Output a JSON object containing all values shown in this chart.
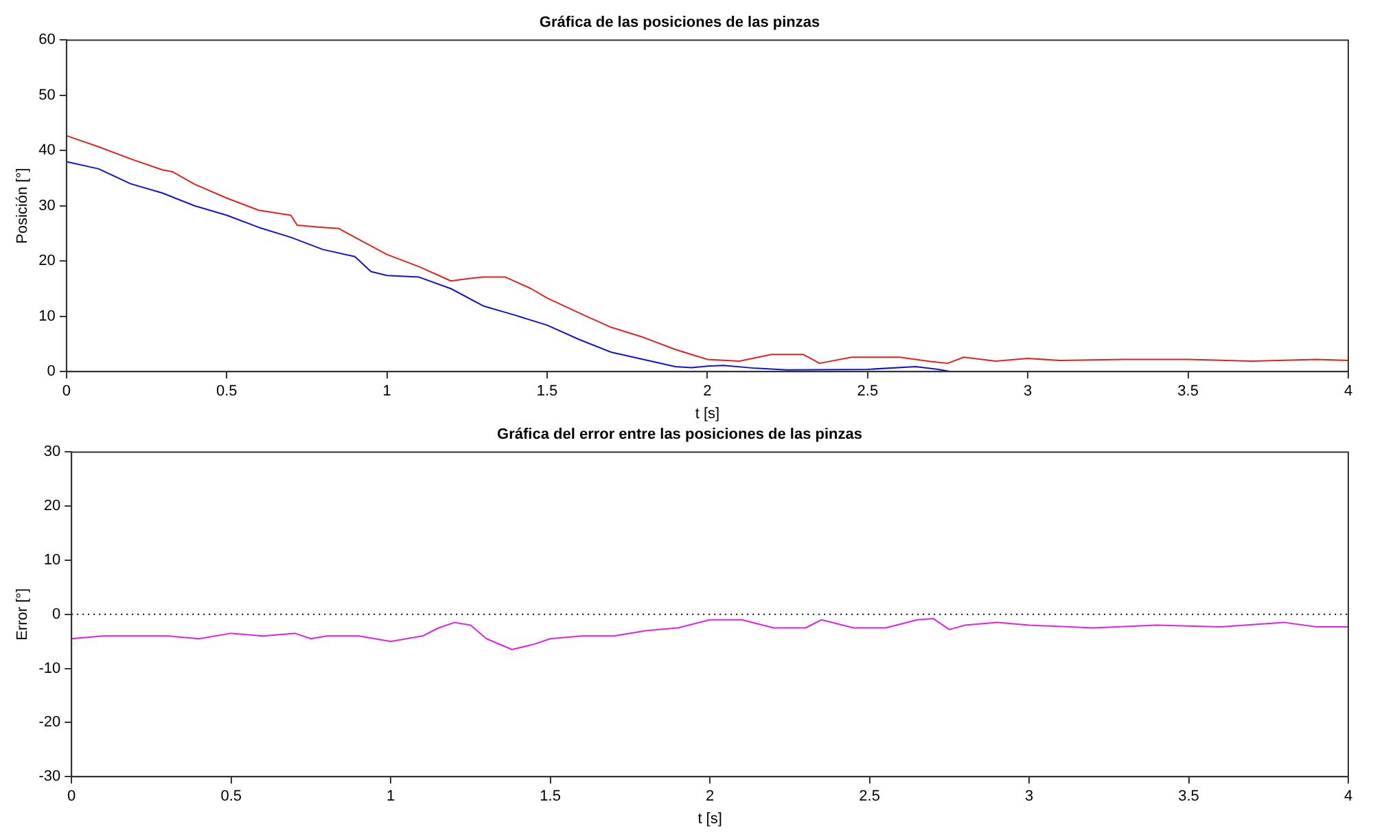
{
  "chart_data": [
    {
      "type": "line",
      "title": "Gráfica de las posiciones de las pinzas",
      "xlabel": "t [s]",
      "ylabel": "Posición [°]",
      "xlim": [
        0,
        4
      ],
      "xticks": [
        0,
        0.5,
        1,
        1.5,
        2,
        2.5,
        3,
        3.5,
        4
      ],
      "ylim": [
        0,
        60
      ],
      "yticks": [
        0,
        10,
        20,
        30,
        40,
        50,
        60
      ],
      "grid": false,
      "legend": false,
      "marker": "none",
      "line_style": "solid",
      "series": [
        {
          "color": "#e02020",
          "x": [
            0,
            0.1,
            0.2,
            0.3,
            0.33,
            0.4,
            0.5,
            0.6,
            0.7,
            0.72,
            0.8,
            0.85,
            0.9,
            1.0,
            1.1,
            1.2,
            1.25,
            1.3,
            1.37,
            1.45,
            1.5,
            1.6,
            1.7,
            1.8,
            1.9,
            2.0,
            2.1,
            2.2,
            2.3,
            2.35,
            2.45,
            2.6,
            2.7,
            2.75,
            2.8,
            2.9,
            3.0,
            3.1,
            3.3,
            3.5,
            3.7,
            3.9,
            4.0
          ],
          "values": [
            42.7,
            40.7,
            38.5,
            36.5,
            36.2,
            33.9,
            31.4,
            29.2,
            28.3,
            26.5,
            26.1,
            25.9,
            24.3,
            21.2,
            19,
            16.4,
            16.8,
            17.1,
            17.1,
            15,
            13.3,
            10.6,
            8,
            6.2,
            4,
            2.2,
            1.9,
            3.1,
            3.1,
            1.5,
            2.6,
            2.6,
            1.8,
            1.5,
            2.6,
            1.9,
            2.4,
            2,
            2.2,
            2.2,
            1.9,
            2.2,
            2
          ]
        },
        {
          "color": "#1010d0",
          "x": [
            0,
            0.1,
            0.2,
            0.3,
            0.4,
            0.5,
            0.6,
            0.7,
            0.8,
            0.9,
            0.95,
            1.0,
            1.1,
            1.2,
            1.3,
            1.4,
            1.5,
            1.6,
            1.7,
            1.8,
            1.9,
            1.95,
            2.0,
            2.05,
            2.15,
            2.25,
            2.5,
            2.65,
            2.72,
            2.76
          ],
          "values": [
            38,
            36.7,
            34,
            32.3,
            30,
            28.3,
            26.1,
            24.3,
            22.1,
            20.8,
            18.1,
            17.4,
            17.1,
            15,
            11.9,
            10.2,
            8.4,
            5.8,
            3.5,
            2.2,
            0.9,
            0.7,
            1,
            1.1,
            0.6,
            0.3,
            0.4,
            0.9,
            0.4,
            0
          ]
        }
      ]
    },
    {
      "type": "line",
      "title": "Gráfica del error entre las posiciones de las pinzas",
      "xlabel": "t [s]",
      "ylabel": "Error [°]",
      "xlim": [
        0,
        4
      ],
      "xticks": [
        0,
        0.5,
        1,
        1.5,
        2,
        2.5,
        3,
        3.5,
        4
      ],
      "ylim": [
        -30,
        30
      ],
      "yticks": [
        -30,
        -20,
        -10,
        0,
        10,
        20,
        30
      ],
      "grid": false,
      "legend": false,
      "marker": "none",
      "line_style": "solid",
      "ref_lines": [
        {
          "axis": "y",
          "value": 0,
          "color": "#000000",
          "line_style": "dotted"
        }
      ],
      "series": [
        {
          "color": "#e020e0",
          "x": [
            0,
            0.1,
            0.3,
            0.4,
            0.5,
            0.6,
            0.7,
            0.75,
            0.8,
            0.9,
            1.0,
            1.1,
            1.15,
            1.2,
            1.25,
            1.3,
            1.38,
            1.45,
            1.5,
            1.6,
            1.7,
            1.8,
            1.9,
            2.0,
            2.1,
            2.2,
            2.3,
            2.35,
            2.45,
            2.55,
            2.65,
            2.7,
            2.75,
            2.8,
            2.9,
            3.0,
            3.2,
            3.4,
            3.6,
            3.8,
            3.9,
            4.0
          ],
          "values": [
            -4.5,
            -4,
            -4,
            -4.5,
            -3.5,
            -4,
            -3.5,
            -4.5,
            -4,
            -4,
            -5,
            -4,
            -2.5,
            -1.5,
            -2,
            -4.5,
            -6.5,
            -5.5,
            -4.5,
            -4,
            -4,
            -3,
            -2.5,
            -1,
            -1,
            -2.5,
            -2.5,
            -1,
            -2.5,
            -2.5,
            -1,
            -0.8,
            -2.8,
            -2,
            -1.5,
            -2,
            -2.5,
            -2,
            -2.3,
            -1.5,
            -2.3,
            -2.3
          ]
        }
      ]
    }
  ]
}
